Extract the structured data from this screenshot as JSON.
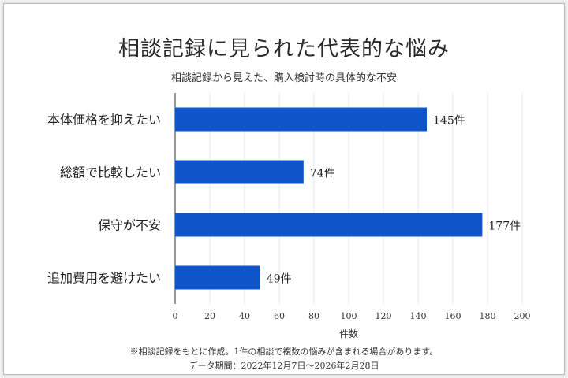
{
  "chart_data": {
    "type": "bar",
    "orientation": "horizontal",
    "title": "相談記録に見られた代表的な悩み",
    "subtitle": "相談記録から見えた、購入検討時の具体的な不安",
    "categories": [
      "本体価格を抑えたい",
      "総額で比較したい",
      "保守が不安",
      "追加費用を避けたい"
    ],
    "values": [
      145,
      74,
      177,
      49
    ],
    "value_labels": [
      "145件",
      "74件",
      "177件",
      "49件"
    ],
    "xlabel": "件数",
    "xlim": [
      0,
      200
    ],
    "xticks": [
      "0",
      "20",
      "40",
      "60",
      "80",
      "100",
      "120",
      "140",
      "160",
      "180",
      "200"
    ],
    "grid": true,
    "bar_color": "#0f55c9"
  },
  "footnote": "※相談記録をもとに作成。1件の相談で複数の悩みが含まれる場合があります。",
  "period": "データ期間：2022年12月7日〜2026年2月28日"
}
